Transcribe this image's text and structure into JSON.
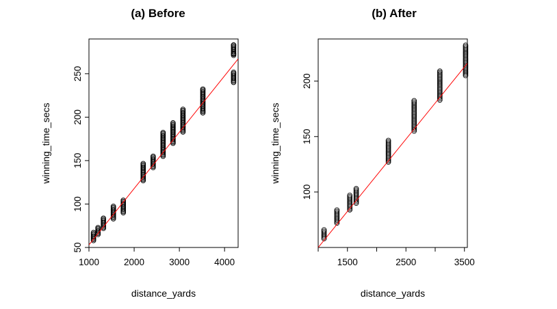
{
  "chart_data": [
    {
      "type": "scatter",
      "title": "(a) Before",
      "xlabel": "distance_yards",
      "ylabel": "winning_time_secs",
      "xlim": [
        1000,
        4300
      ],
      "ylim": [
        50,
        290
      ],
      "xticks": [
        1000,
        2000,
        3000,
        4000
      ],
      "yticks": [
        50,
        100,
        150,
        200,
        250
      ],
      "grid": false,
      "fit_line": {
        "color": "#ff0000",
        "from": [
          1000,
          53
        ],
        "to": [
          4300,
          267
        ]
      },
      "groups": [
        {
          "x": 1100,
          "y_min": 58,
          "y_max": 68
        },
        {
          "x": 1200,
          "y_min": 65,
          "y_max": 74
        },
        {
          "x": 1320,
          "y_min": 72,
          "y_max": 84
        },
        {
          "x": 1540,
          "y_min": 83,
          "y_max": 98
        },
        {
          "x": 1760,
          "y_min": 90,
          "y_max": 105
        },
        {
          "x": 2200,
          "y_min": 127,
          "y_max": 147
        },
        {
          "x": 2420,
          "y_min": 142,
          "y_max": 155
        },
        {
          "x": 2640,
          "y_min": 155,
          "y_max": 183
        },
        {
          "x": 2860,
          "y_min": 170,
          "y_max": 194
        },
        {
          "x": 3080,
          "y_min": 183,
          "y_max": 210
        },
        {
          "x": 3520,
          "y_min": 205,
          "y_max": 233
        },
        {
          "x": 4200,
          "y_min": 240,
          "y_max": 283,
          "gap_above": 253
        }
      ]
    },
    {
      "type": "scatter",
      "title": "(b) After",
      "xlabel": "distance_yards",
      "ylabel": "winning_time_secs",
      "xlim": [
        1000,
        3550
      ],
      "ylim": [
        50,
        238
      ],
      "xticks": [
        1500,
        2500,
        3500
      ],
      "xticks_minor": [
        1000,
        2000,
        3000
      ],
      "yticks": [
        100,
        150,
        200
      ],
      "grid": false,
      "fit_line": {
        "color": "#ff0000",
        "from": [
          1000,
          50
        ],
        "to": [
          3550,
          216
        ]
      },
      "groups": [
        {
          "x": 1100,
          "y_min": 58,
          "y_max": 67
        },
        {
          "x": 1320,
          "y_min": 72,
          "y_max": 84
        },
        {
          "x": 1540,
          "y_min": 84,
          "y_max": 98
        },
        {
          "x": 1650,
          "y_min": 90,
          "y_max": 104
        },
        {
          "x": 2200,
          "y_min": 127,
          "y_max": 147
        },
        {
          "x": 2640,
          "y_min": 155,
          "y_max": 183
        },
        {
          "x": 3080,
          "y_min": 183,
          "y_max": 210
        },
        {
          "x": 3520,
          "y_min": 205,
          "y_max": 233
        }
      ]
    }
  ]
}
